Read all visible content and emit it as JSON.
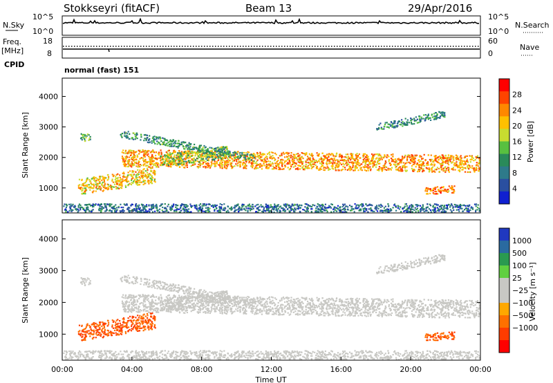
{
  "header": {
    "station": "Stokkseyri (fitACF)",
    "beam": "Beam 13",
    "date": "29/Apr/2016"
  },
  "sky_panel": {
    "left_label": "N.Sky",
    "left_ticks": [
      "10^5",
      "10^0"
    ],
    "right_label": "N.Search",
    "right_ticks": [
      "10^5",
      "10^0"
    ]
  },
  "freq_panel": {
    "left_label_line1": "Freq.",
    "left_label_line2": "[MHz]",
    "left_ticks": [
      "18",
      "8"
    ],
    "right_label": "Nave",
    "right_ticks": [
      "60",
      "0"
    ],
    "cpid_label": "CPID",
    "cpid_value": "normal (fast) 151"
  },
  "x_axis": {
    "label": "Time UT",
    "ticks": [
      "00:00",
      "04:00",
      "08:00",
      "12:00",
      "16:00",
      "20:00",
      "00:00"
    ]
  },
  "power_panel": {
    "y_label": "Slant Range [km]",
    "y_ticks": [
      "4000",
      "3000",
      "2000",
      "1000"
    ],
    "colorbar_label": "Power [dB]",
    "colorbar_ticks": [
      "28",
      "24",
      "20",
      "16",
      "12",
      "8",
      "4"
    ],
    "colors": [
      "#ff0000",
      "#ff4400",
      "#ff8800",
      "#ffc000",
      "#c8dc30",
      "#58c040",
      "#2a8a5a",
      "#2e7a8a",
      "#2a4fa0",
      "#1020d0"
    ]
  },
  "velocity_panel": {
    "y_label": "Slant Range [km]",
    "y_ticks": [
      "4000",
      "3000",
      "2000",
      "1000"
    ],
    "colorbar_label": "Velocity [m s⁻¹]",
    "colorbar_ticks": [
      "1000",
      "500",
      "100",
      "25",
      "−25",
      "−100",
      "−500",
      "−1000"
    ],
    "colors": [
      "#2038c0",
      "#2a6aa0",
      "#2a9a50",
      "#60d040",
      "#c8c8c4",
      "#c8c8c4",
      "#ffa800",
      "#ff7000",
      "#ff3c00",
      "#ff0000"
    ]
  },
  "chart_data": {
    "type": "heatmap",
    "x_range_hours": [
      0,
      24
    ],
    "y_range_km": [
      180,
      4600
    ],
    "scatter_bands": [
      {
        "name": "main",
        "t0": 3.4,
        "t1": 24.0,
        "r0": 2000,
        "r1": 1800,
        "width": 280,
        "power": 22,
        "velocity": 0
      },
      {
        "name": "rising",
        "t0": 5.6,
        "t1": 9.5,
        "r0": 1900,
        "r1": 2200,
        "width": 200,
        "power": 14,
        "velocity": 0
      },
      {
        "name": "upper_arc",
        "t0": 3.3,
        "t1": 11.0,
        "r0": 2800,
        "r1": 2000,
        "width": 120,
        "power": 10,
        "velocity": 0
      },
      {
        "name": "early_east",
        "t0": 0.9,
        "t1": 5.3,
        "r0": 1050,
        "r1": 1450,
        "width": 260,
        "power": 20,
        "velocity": -300
      },
      {
        "name": "late_top",
        "t0": 18.0,
        "t1": 22.0,
        "r0": 3000,
        "r1": 3450,
        "width": 120,
        "power": 8,
        "velocity": 0
      },
      {
        "name": "late_east",
        "t0": 20.8,
        "t1": 22.5,
        "r0": 920,
        "r1": 980,
        "width": 120,
        "power": 24,
        "velocity": -300
      },
      {
        "name": "early_top",
        "t0": 1.0,
        "t1": 1.6,
        "r0": 2700,
        "r1": 2650,
        "width": 120,
        "power": 12,
        "velocity": 0
      },
      {
        "name": "near_range",
        "t0": 0.0,
        "t1": 24.0,
        "r0": 320,
        "r1": 320,
        "width": 180,
        "power": 6,
        "velocity": 0
      }
    ]
  }
}
